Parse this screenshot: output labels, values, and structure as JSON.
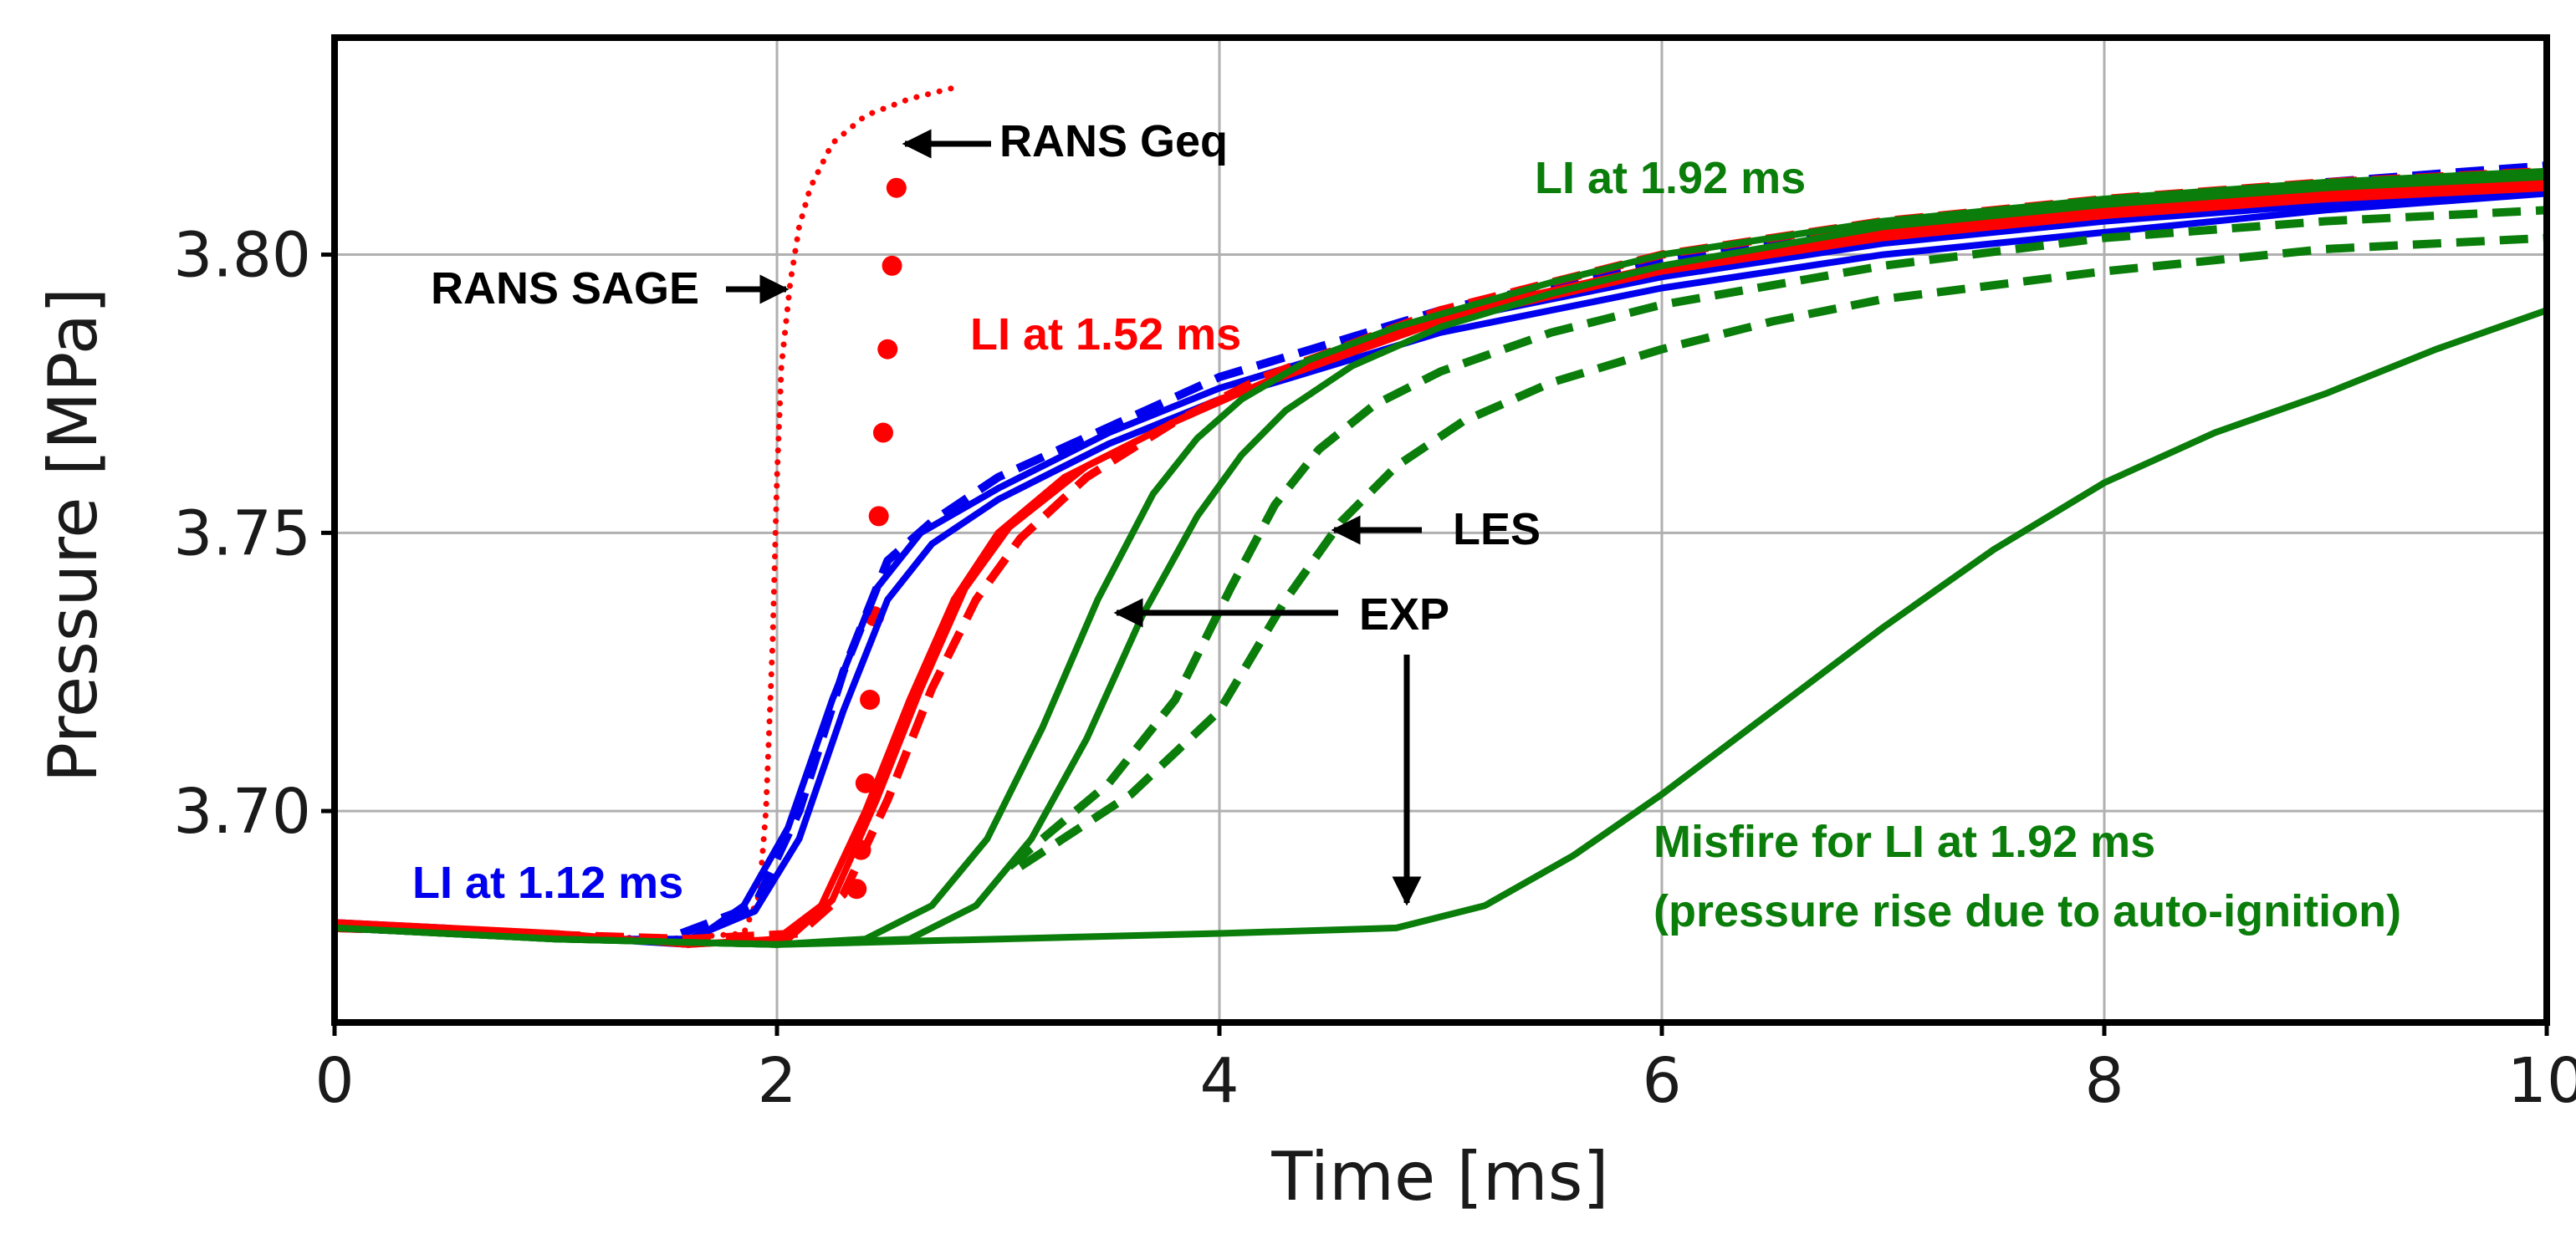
{
  "chart_data": {
    "type": "line",
    "title": "",
    "xlabel": "Time [ms]",
    "ylabel": "Pressure [MPa]",
    "xlim": [
      0,
      10
    ],
    "ylim": [
      3.662,
      3.839
    ],
    "xticks": [
      0,
      2,
      4,
      6,
      8,
      10
    ],
    "yticks": [
      3.7,
      3.75,
      3.8
    ],
    "xtick_labels": [
      "0",
      "2",
      "4",
      "6",
      "8",
      "10"
    ],
    "ytick_labels": [
      "3.70",
      "3.75",
      "3.80"
    ],
    "grid": true,
    "colors": {
      "red": "#ff0000",
      "blue": "#0000ee",
      "green": "#0a7d0a",
      "black": "#000000"
    },
    "series": [
      {
        "name": "RANS SAGE",
        "color": "red",
        "style": "dotted",
        "lw": 7,
        "x": [
          0,
          1.5,
          1.85,
          1.92,
          1.95,
          1.98,
          2.0,
          2.02,
          2.06,
          2.1,
          2.15,
          2.25,
          2.4,
          2.6,
          2.8
        ],
        "y": [
          3.679,
          3.677,
          3.678,
          3.685,
          3.7,
          3.73,
          3.76,
          3.78,
          3.795,
          3.805,
          3.812,
          3.82,
          3.825,
          3.828,
          3.83
        ]
      },
      {
        "name": "RANS Geq",
        "color": "red",
        "style": "markers",
        "lw": 0,
        "x": [
          2.36,
          2.38,
          2.4,
          2.42,
          2.44,
          2.46,
          2.48,
          2.5,
          2.52,
          2.54
        ],
        "y": [
          3.686,
          3.693,
          3.705,
          3.72,
          3.735,
          3.753,
          3.768,
          3.783,
          3.798,
          3.812
        ]
      },
      {
        "name": "LI 1.12 ms EXP a",
        "color": "blue",
        "style": "solid",
        "lw": 8,
        "x": [
          0,
          0.5,
          1.2,
          1.6,
          1.9,
          2.1,
          2.3,
          2.5,
          2.7,
          3.0,
          3.5,
          4.0,
          5.0,
          6.0,
          7.0,
          8.0,
          9.0,
          10.0
        ],
        "y": [
          3.679,
          3.678,
          3.677,
          3.677,
          3.682,
          3.695,
          3.718,
          3.738,
          3.748,
          3.756,
          3.766,
          3.774,
          3.786,
          3.794,
          3.8,
          3.804,
          3.808,
          3.811
        ]
      },
      {
        "name": "LI 1.12 ms EXP b",
        "color": "blue",
        "style": "solid",
        "lw": 8,
        "x": [
          0,
          0.5,
          1.2,
          1.6,
          1.85,
          2.05,
          2.25,
          2.45,
          2.65,
          3.0,
          3.5,
          4.0,
          5.0,
          6.0,
          7.0,
          8.0,
          9.0,
          10.0
        ],
        "y": [
          3.68,
          3.679,
          3.677,
          3.676,
          3.683,
          3.697,
          3.72,
          3.74,
          3.75,
          3.758,
          3.768,
          3.776,
          3.788,
          3.796,
          3.802,
          3.806,
          3.809,
          3.812
        ]
      },
      {
        "name": "LI 1.12 ms LES",
        "color": "blue",
        "style": "dashed",
        "lw": 10,
        "x": [
          0,
          1.5,
          1.9,
          2.1,
          2.3,
          2.5,
          2.7,
          3.0,
          3.5,
          4.0,
          5.0,
          6.0,
          7.0,
          8.0,
          9.0,
          10.0
        ],
        "y": [
          3.679,
          3.677,
          3.683,
          3.7,
          3.725,
          3.745,
          3.752,
          3.76,
          3.769,
          3.778,
          3.79,
          3.799,
          3.805,
          3.809,
          3.813,
          3.816
        ]
      },
      {
        "name": "LI 1.52 ms EXP a",
        "color": "red",
        "style": "solid",
        "lw": 8,
        "x": [
          0,
          1.0,
          1.6,
          2.0,
          2.2,
          2.4,
          2.6,
          2.8,
          3.0,
          3.3,
          3.7,
          4.0,
          5.0,
          6.0,
          7.0,
          8.0,
          9.0,
          10.0
        ],
        "y": [
          3.679,
          3.678,
          3.676,
          3.677,
          3.683,
          3.7,
          3.72,
          3.738,
          3.75,
          3.76,
          3.768,
          3.774,
          3.788,
          3.797,
          3.803,
          3.807,
          3.81,
          3.812
        ]
      },
      {
        "name": "LI 1.52 ms EXP b",
        "color": "red",
        "style": "solid",
        "lw": 8,
        "x": [
          0,
          1.0,
          1.6,
          2.05,
          2.25,
          2.45,
          2.65,
          2.85,
          3.05,
          3.4,
          3.8,
          4.2,
          5.0,
          6.0,
          7.0,
          8.0,
          9.0,
          10.0
        ],
        "y": [
          3.68,
          3.678,
          3.676,
          3.677,
          3.684,
          3.702,
          3.722,
          3.74,
          3.751,
          3.762,
          3.77,
          3.777,
          3.789,
          3.798,
          3.804,
          3.808,
          3.811,
          3.813
        ]
      },
      {
        "name": "LI 1.52 ms LES",
        "color": "red",
        "style": "dashed",
        "lw": 10,
        "x": [
          0,
          1.6,
          2.1,
          2.3,
          2.5,
          2.7,
          2.9,
          3.1,
          3.4,
          3.8,
          4.2,
          5.0,
          6.0,
          7.0,
          8.0,
          9.0,
          10.0
        ],
        "y": [
          3.679,
          3.677,
          3.678,
          3.685,
          3.702,
          3.722,
          3.738,
          3.749,
          3.76,
          3.77,
          3.778,
          3.79,
          3.8,
          3.806,
          3.81,
          3.813,
          3.815
        ]
      },
      {
        "name": "LI 1.92 ms EXP a",
        "color": "green",
        "style": "solid",
        "lw": 8,
        "x": [
          0,
          1.0,
          2.0,
          2.4,
          2.7,
          2.95,
          3.2,
          3.45,
          3.7,
          3.9,
          4.1,
          4.4,
          4.8,
          5.5,
          6.0,
          7.0,
          8.0,
          9.0,
          10.0
        ],
        "y": [
          3.679,
          3.677,
          3.676,
          3.677,
          3.683,
          3.695,
          3.715,
          3.738,
          3.757,
          3.767,
          3.774,
          3.781,
          3.787,
          3.795,
          3.8,
          3.806,
          3.81,
          3.813,
          3.815
        ]
      },
      {
        "name": "LI 1.92 ms EXP b",
        "color": "green",
        "style": "solid",
        "lw": 8,
        "x": [
          0,
          1.0,
          2.0,
          2.6,
          2.9,
          3.15,
          3.4,
          3.65,
          3.9,
          4.1,
          4.3,
          4.6,
          5.0,
          5.5,
          6.0,
          7.0,
          8.0,
          9.0,
          10.0
        ],
        "y": [
          3.679,
          3.677,
          3.676,
          3.677,
          3.683,
          3.695,
          3.713,
          3.735,
          3.753,
          3.764,
          3.772,
          3.78,
          3.787,
          3.793,
          3.798,
          3.805,
          3.809,
          3.812,
          3.814
        ]
      },
      {
        "name": "LI 1.92 ms LES a",
        "color": "green",
        "style": "dashed",
        "lw": 10,
        "x": [
          3.05,
          3.5,
          3.8,
          4.05,
          4.25,
          4.45,
          4.7,
          5.0,
          5.5,
          6.0,
          7.0,
          8.0,
          9.0,
          10.0
        ],
        "y": [
          3.69,
          3.705,
          3.72,
          3.74,
          3.755,
          3.765,
          3.773,
          3.779,
          3.786,
          3.791,
          3.798,
          3.803,
          3.806,
          3.808
        ]
      },
      {
        "name": "LI 1.92 ms LES b",
        "color": "green",
        "style": "dashed",
        "lw": 10,
        "x": [
          3.1,
          3.6,
          4.0,
          4.3,
          4.55,
          4.8,
          5.1,
          5.5,
          6.0,
          6.5,
          7.0,
          8.0,
          9.0,
          10.0
        ],
        "y": [
          3.69,
          3.703,
          3.718,
          3.738,
          3.752,
          3.762,
          3.77,
          3.777,
          3.783,
          3.788,
          3.792,
          3.797,
          3.801,
          3.803
        ]
      },
      {
        "name": "Misfire for LI at 1.92 ms",
        "color": "green",
        "style": "solid",
        "lw": 8,
        "x": [
          0,
          1.0,
          2.0,
          3.0,
          4.0,
          4.8,
          5.2,
          5.6,
          6.0,
          6.5,
          7.0,
          7.5,
          8.0,
          8.5,
          9.0,
          9.5,
          10.0
        ],
        "y": [
          3.679,
          3.677,
          3.676,
          3.677,
          3.678,
          3.679,
          3.683,
          3.692,
          3.703,
          3.718,
          3.733,
          3.747,
          3.759,
          3.768,
          3.775,
          3.783,
          3.79
        ]
      }
    ],
    "annotations": [
      {
        "id": "rans-sage",
        "text": "RANS SAGE",
        "color": "black"
      },
      {
        "id": "rans-geq",
        "text": "RANS Geq",
        "color": "black"
      },
      {
        "id": "li-152",
        "text": "LI at 1.52 ms",
        "color": "red"
      },
      {
        "id": "li-112",
        "text": "LI at 1.12 ms",
        "color": "blue"
      },
      {
        "id": "li-192",
        "text": "LI at 1.92 ms",
        "color": "green"
      },
      {
        "id": "les",
        "text": "LES",
        "color": "black"
      },
      {
        "id": "exp",
        "text": "EXP",
        "color": "black"
      },
      {
        "id": "misfire",
        "text": "Misfire for LI at 1.92 ms",
        "color": "green"
      },
      {
        "id": "misfire-note",
        "text": "(pressure rise due to auto-ignition)",
        "color": "green"
      }
    ]
  }
}
